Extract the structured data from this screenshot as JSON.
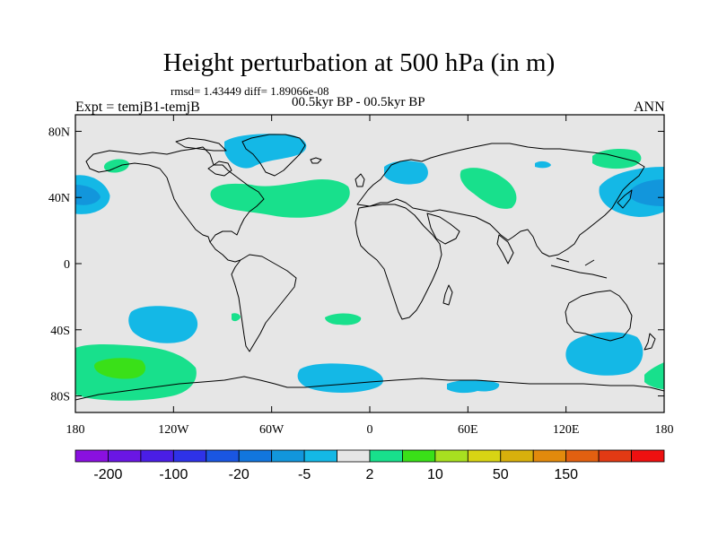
{
  "title": "Height perturbation at 500 hPa (in m)",
  "stats": "rmsd= 1.43449 diff= 1.89066e-08",
  "period": "00.5kyr BP - 00.5kyr BP",
  "experiment": "Expt = temjB1-temjB",
  "season": "ANN",
  "map": {
    "projection": "cylindrical-equidistant",
    "lon_range": [
      -180,
      180
    ],
    "lat_range": [
      -90,
      90
    ],
    "background_color": "#e6e6e6",
    "lat_ticks": [
      {
        "value": 80,
        "label": "80N"
      },
      {
        "value": 40,
        "label": "40N"
      },
      {
        "value": 0,
        "label": "0"
      },
      {
        "value": -40,
        "label": "40S"
      },
      {
        "value": -80,
        "label": "80S"
      }
    ],
    "lon_ticks": [
      {
        "value": -180,
        "label": "180"
      },
      {
        "value": -120,
        "label": "120W"
      },
      {
        "value": -60,
        "label": "60W"
      },
      {
        "value": 0,
        "label": "0"
      },
      {
        "value": 60,
        "label": "60E"
      },
      {
        "value": 120,
        "label": "120E"
      },
      {
        "value": 180,
        "label": "180"
      }
    ]
  },
  "colorbar": {
    "colors": [
      "#8a10e0",
      "#6a16e4",
      "#4a1ee6",
      "#2e32e8",
      "#1a56e2",
      "#1276de",
      "#1296dc",
      "#14b8e6",
      "#e6e6e6",
      "#18e08c",
      "#3ae018",
      "#a8e020",
      "#d8d414",
      "#d8b00c",
      "#e28a0c",
      "#e26010",
      "#e23a14",
      "#ee1010"
    ],
    "labels": [
      {
        "text": "-200",
        "index": 1
      },
      {
        "text": "-100",
        "index": 3
      },
      {
        "text": "-20",
        "index": 5
      },
      {
        "text": "-5",
        "index": 7
      },
      {
        "text": "2",
        "index": 9
      },
      {
        "text": "10",
        "index": 11
      },
      {
        "text": "50",
        "index": 13
      },
      {
        "text": "150",
        "index": 15
      }
    ]
  }
}
